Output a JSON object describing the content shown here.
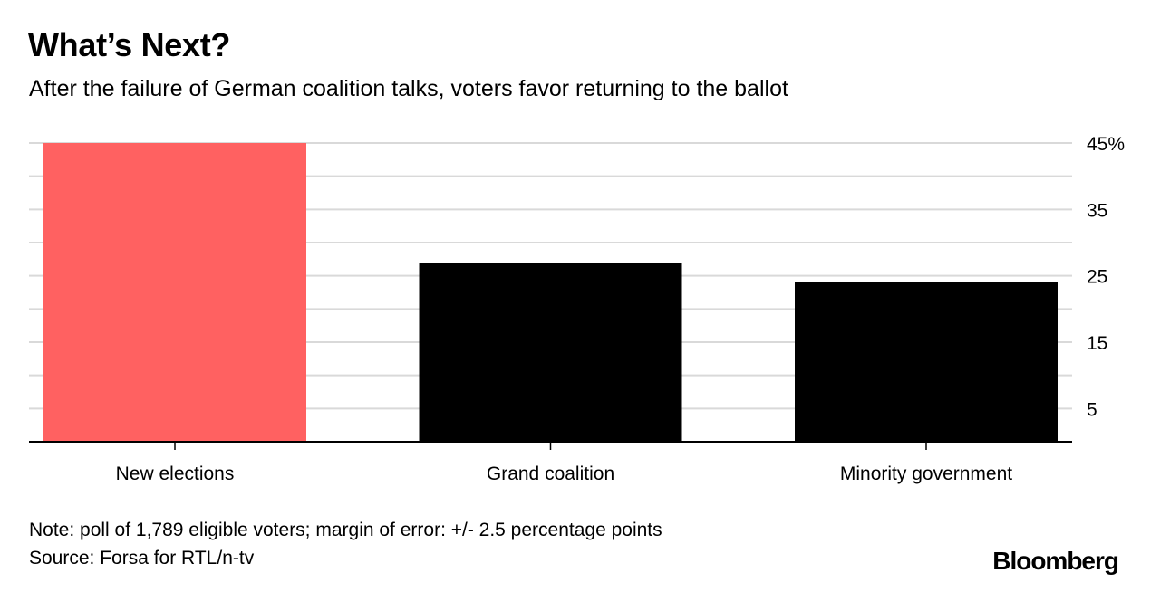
{
  "title": "What’s Next?",
  "subtitle": "After the failure of German coalition talks, voters favor returning to the ballot",
  "note": "Note: poll of 1,789 eligible voters; margin of error: +/- 2.5 percentage points",
  "source": "Source: Forsa for RTL/n-tv",
  "brand": "Bloomberg",
  "colors": {
    "highlight": "#ff6161",
    "bar": "#000000",
    "grid": "#d9d9d9",
    "axis": "#000000"
  },
  "chart_data": {
    "type": "bar",
    "categories": [
      "New elections",
      "Grand coalition",
      "Minority government"
    ],
    "values": [
      45,
      27,
      24
    ],
    "bar_colors": [
      "#ff6161",
      "#000000",
      "#000000"
    ],
    "ylim": [
      0,
      45
    ],
    "yticks": [
      5,
      15,
      25,
      35,
      45
    ],
    "ytick_labels": [
      "5",
      "15",
      "25",
      "35",
      "45%"
    ],
    "gridlines": [
      5,
      10,
      15,
      20,
      25,
      30,
      35,
      40,
      45
    ],
    "grid": true,
    "y_axis_position": "right",
    "title": "What’s Next?",
    "xlabel": "",
    "ylabel": ""
  }
}
